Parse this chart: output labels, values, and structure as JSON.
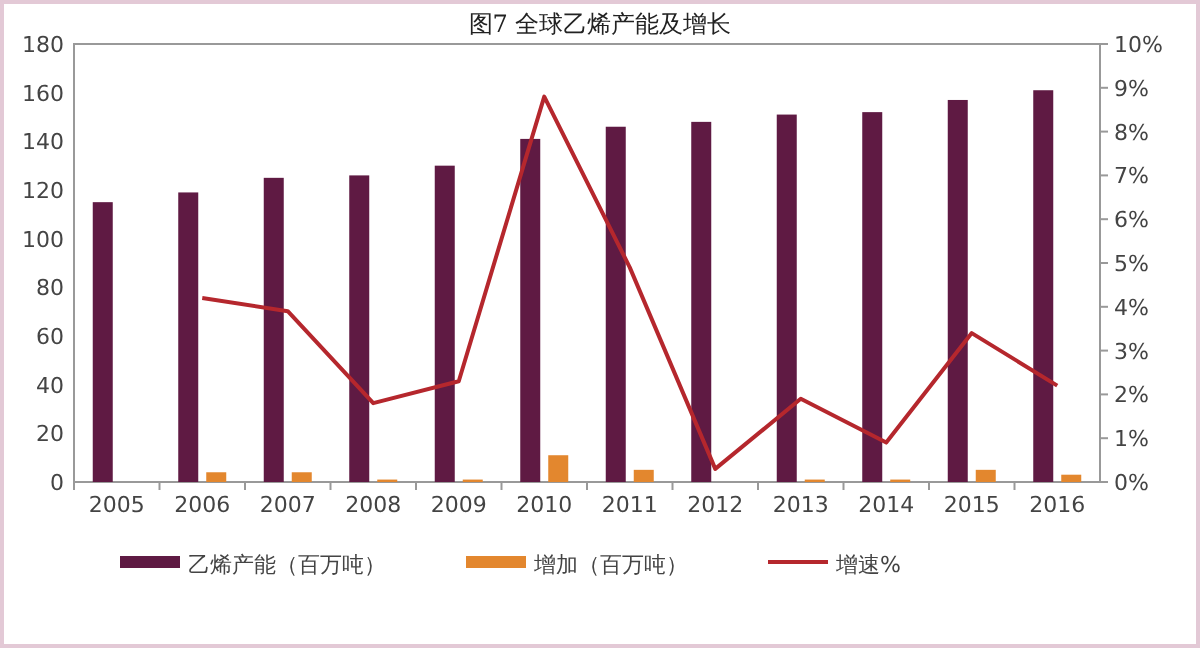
{
  "chart_data": {
    "type": "bar",
    "title": "图7  全球乙烯产能及增长",
    "categories": [
      "2005",
      "2006",
      "2007",
      "2008",
      "2009",
      "2010",
      "2011",
      "2012",
      "2013",
      "2014",
      "2015",
      "2016"
    ],
    "series": [
      {
        "name": "乙烯产能（百万吨）",
        "color": "#5f1a43",
        "values": [
          115,
          119,
          125,
          126,
          130,
          141,
          146,
          148,
          151,
          152,
          157,
          161
        ]
      },
      {
        "name": "增加（百万吨）",
        "color": "#e3872e",
        "values": [
          null,
          4,
          4,
          1,
          1,
          11,
          5,
          null,
          1,
          1,
          5,
          3
        ]
      },
      {
        "name": "增速%",
        "type": "line",
        "axis": "y2",
        "color": "#b5272d",
        "values": [
          null,
          4.2,
          3.9,
          1.8,
          2.3,
          8.8,
          4.9,
          0.3,
          1.9,
          0.9,
          3.4,
          2.2
        ]
      }
    ],
    "ylim": [
      0,
      180
    ],
    "yticks": [
      0,
      20,
      40,
      60,
      80,
      100,
      120,
      140,
      160,
      180
    ],
    "y2lim": [
      0,
      10
    ],
    "y2ticks": [
      {
        "value": 0,
        "label": "0%"
      },
      {
        "value": 1,
        "label": "1%"
      },
      {
        "value": 2,
        "label": "2%"
      },
      {
        "value": 3,
        "label": "3%"
      },
      {
        "value": 4,
        "label": "4%"
      },
      {
        "value": 5,
        "label": "5%"
      },
      {
        "value": 6,
        "label": "6%"
      },
      {
        "value": 7,
        "label": "7%"
      },
      {
        "value": 8,
        "label": "8%"
      },
      {
        "value": 9,
        "label": "9%"
      },
      {
        "value": 10,
        "label": "10%"
      }
    ],
    "legend": "bottom"
  }
}
